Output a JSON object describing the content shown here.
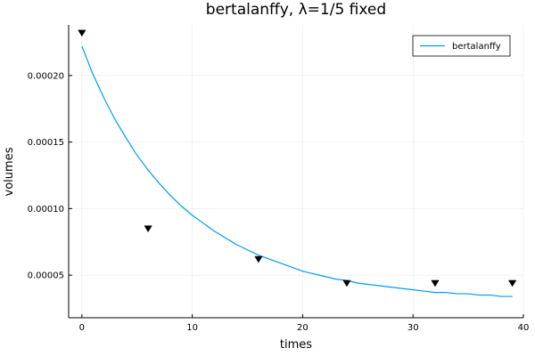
{
  "chart_data": {
    "type": "line",
    "title": "bertalanffy, λ=1/5 fixed",
    "xlabel": "times",
    "ylabel": "volumes",
    "xlim": [
      -1.2,
      40
    ],
    "ylim": [
      1.8e-05,
      0.000238
    ],
    "x_ticks": [
      0,
      10,
      20,
      30,
      40
    ],
    "x_tick_labels": [
      "0",
      "10",
      "20",
      "30",
      "40"
    ],
    "y_ticks": [
      5e-05,
      0.0001,
      0.00015,
      0.0002
    ],
    "y_tick_labels": [
      "0.00005",
      "0.00010",
      "0.00015",
      "0.00020"
    ],
    "grid": true,
    "legend_position": "top-right",
    "series": [
      {
        "name": "bertalanffy",
        "kind": "line",
        "color": "#009AFA",
        "x": [
          0,
          1,
          2,
          3,
          4,
          5,
          6,
          7,
          8,
          9,
          10,
          11,
          12,
          13,
          14,
          15,
          16,
          17,
          18,
          19,
          20,
          21,
          22,
          23,
          24,
          25,
          26,
          27,
          28,
          29,
          30,
          31,
          32,
          33,
          34,
          35,
          36,
          37,
          38,
          39
        ],
        "y": [
          0.000222,
          0.000201,
          0.000183,
          0.000167,
          0.000153,
          0.00014,
          0.000129,
          0.000119,
          0.00011,
          0.000102,
          9.5e-05,
          8.9e-05,
          8.3e-05,
          7.8e-05,
          7.3e-05,
          6.9e-05,
          6.5e-05,
          6.2e-05,
          5.9e-05,
          5.6e-05,
          5.3e-05,
          5.1e-05,
          4.9e-05,
          4.7e-05,
          4.6e-05,
          4.4e-05,
          4.3e-05,
          4.2e-05,
          4.1e-05,
          4e-05,
          3.9e-05,
          3.8e-05,
          3.7e-05,
          3.7e-05,
          3.6e-05,
          3.6e-05,
          3.5e-05,
          3.5e-05,
          3.4e-05,
          3.4e-05
        ]
      },
      {
        "kind": "scatter",
        "marker": "down-triangle",
        "color": "#000000",
        "x": [
          0,
          6,
          16,
          24,
          32,
          39
        ],
        "y": [
          0.000232,
          8.5e-05,
          6.2e-05,
          4.4e-05,
          4.4e-05,
          4.4e-05
        ]
      }
    ]
  }
}
